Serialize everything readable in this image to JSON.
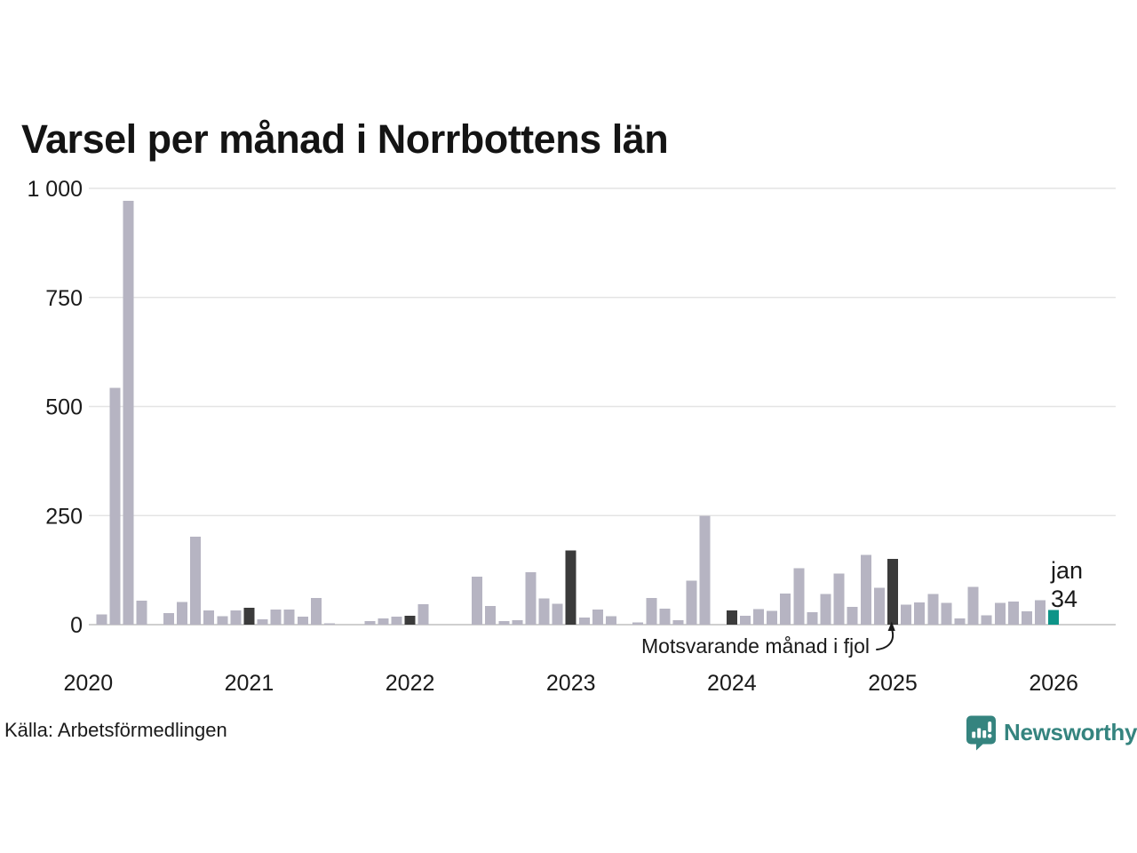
{
  "title": "Varsel per månad i Norrbottens län",
  "source": "Källa: Arbetsförmedlingen",
  "footer": {
    "brand": "Newsworthy"
  },
  "annotation": {
    "text": "Motsvarande månad i fjol"
  },
  "point_label": {
    "month": "jan",
    "value": "34"
  },
  "colors": {
    "bar_normal": "#b6b4c2",
    "bar_compare": "#3b3b3b",
    "bar_current": "#0e9488",
    "brand": "#35847f",
    "grid": "#e4e4e4",
    "axis_line": "#cfcfcf",
    "text": "#1a1a1a"
  },
  "chart_data": {
    "type": "bar",
    "title": "Varsel per månad i Norrbottens län",
    "xlabel": "",
    "ylabel": "",
    "ylim": [
      0,
      1000
    ],
    "grid": "horizontal",
    "legend": null,
    "y_ticks": [
      {
        "label": "1 000",
        "value": 1000
      },
      {
        "label": "750",
        "value": 750
      },
      {
        "label": "500",
        "value": 500
      },
      {
        "label": "250",
        "value": 250
      },
      {
        "label": "0",
        "value": 0
      }
    ],
    "x_ticks": [
      {
        "label": "2020",
        "month_index": 0
      },
      {
        "label": "2021",
        "month_index": 12
      },
      {
        "label": "2022",
        "month_index": 24
      },
      {
        "label": "2023",
        "month_index": 36
      },
      {
        "label": "2024",
        "month_index": 48
      },
      {
        "label": "2025",
        "month_index": 60
      },
      {
        "label": "2026",
        "month_index": 72
      }
    ],
    "categories": [
      "jan 2020",
      "feb 2020",
      "mar 2020",
      "apr 2020",
      "maj 2020",
      "jun 2020",
      "jul 2020",
      "aug 2020",
      "sep 2020",
      "okt 2020",
      "nov 2020",
      "dec 2020",
      "jan 2021",
      "feb 2021",
      "mar 2021",
      "apr 2021",
      "maj 2021",
      "jun 2021",
      "jul 2021",
      "aug 2021",
      "sep 2021",
      "okt 2021",
      "nov 2021",
      "dec 2021",
      "jan 2022",
      "feb 2022",
      "mar 2022",
      "apr 2022",
      "maj 2022",
      "jun 2022",
      "jul 2022",
      "aug 2022",
      "sep 2022",
      "okt 2022",
      "nov 2022",
      "dec 2022",
      "jan 2023",
      "feb 2023",
      "mar 2023",
      "apr 2023",
      "maj 2023",
      "jun 2023",
      "jul 2023",
      "aug 2023",
      "sep 2023",
      "okt 2023",
      "nov 2023",
      "dec 2023",
      "jan 2024",
      "feb 2024",
      "mar 2024",
      "apr 2024",
      "maj 2024",
      "jun 2024",
      "jul 2024",
      "aug 2024",
      "sep 2024",
      "okt 2024",
      "nov 2024",
      "dec 2024",
      "jan 2025",
      "feb 2025",
      "mar 2025",
      "apr 2025",
      "maj 2025",
      "jun 2025",
      "jul 2025",
      "aug 2025",
      "sep 2025",
      "okt 2025",
      "nov 2025",
      "dec 2025",
      "jan 2026"
    ],
    "values": [
      0,
      23,
      543,
      971,
      55,
      0,
      26,
      52,
      202,
      33,
      19,
      33,
      39,
      12,
      35,
      35,
      18,
      61,
      3,
      0,
      0,
      8,
      14,
      18,
      20,
      47,
      0,
      0,
      0,
      110,
      43,
      8,
      10,
      120,
      60,
      48,
      170,
      16,
      35,
      19,
      0,
      5,
      61,
      37,
      10,
      101,
      250,
      0,
      33,
      20,
      36,
      32,
      71,
      129,
      29,
      70,
      117,
      41,
      160,
      85,
      151,
      46,
      51,
      70,
      50,
      14,
      87,
      21,
      50,
      53,
      31,
      56,
      34
    ],
    "roles": [
      "compare",
      "normal",
      "normal",
      "normal",
      "normal",
      "normal",
      "normal",
      "normal",
      "normal",
      "normal",
      "normal",
      "normal",
      "compare",
      "normal",
      "normal",
      "normal",
      "normal",
      "normal",
      "normal",
      "normal",
      "normal",
      "normal",
      "normal",
      "normal",
      "compare",
      "normal",
      "normal",
      "normal",
      "normal",
      "normal",
      "normal",
      "normal",
      "normal",
      "normal",
      "normal",
      "normal",
      "compare",
      "normal",
      "normal",
      "normal",
      "normal",
      "normal",
      "normal",
      "normal",
      "normal",
      "normal",
      "normal",
      "normal",
      "compare",
      "normal",
      "normal",
      "normal",
      "normal",
      "normal",
      "normal",
      "normal",
      "normal",
      "normal",
      "normal",
      "normal",
      "compare",
      "normal",
      "normal",
      "normal",
      "normal",
      "normal",
      "normal",
      "normal",
      "normal",
      "normal",
      "normal",
      "normal",
      "current"
    ]
  }
}
